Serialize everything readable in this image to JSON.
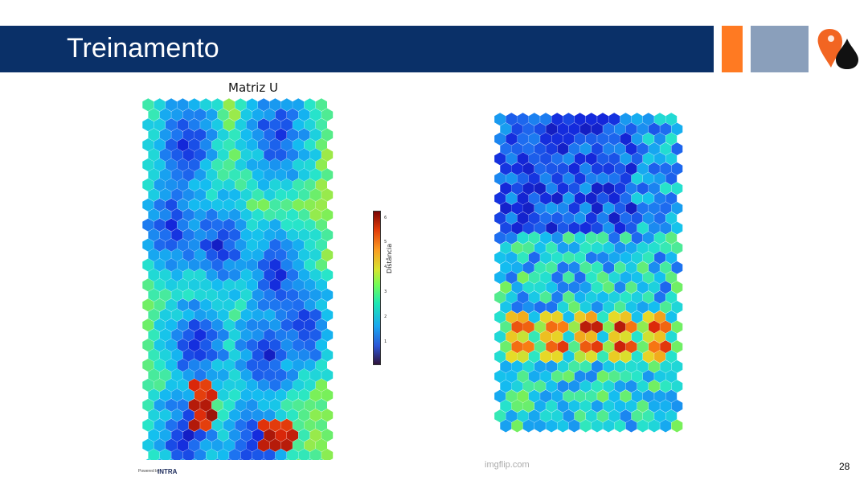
{
  "slide": {
    "title": "Treinamento",
    "page_number": "28",
    "watermark": "imgflip.com",
    "powered_by": "Powered by",
    "intra_logo": "INTRA"
  },
  "left_map": {
    "title": "Matriz U",
    "colorbar_label": "Distância",
    "colorbar_ticks": [
      "6",
      "5",
      "4",
      "3",
      "2",
      "1"
    ]
  },
  "colors": {
    "title_bar": "#0a3068",
    "accent_orange": "#ff7a22",
    "accent_gray": "#8a9fbb",
    "logo_orange": "#f26522",
    "logo_black": "#111111"
  }
}
